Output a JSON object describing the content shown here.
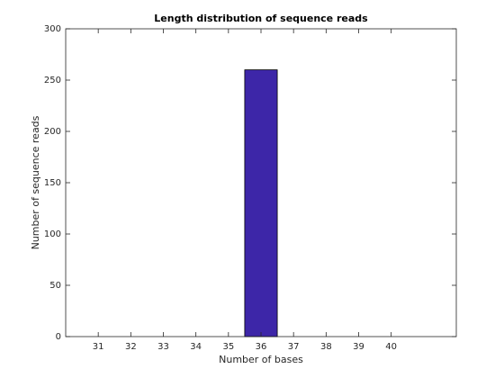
{
  "chart_data": {
    "type": "bar",
    "title": "Length distribution of sequence reads",
    "x_label": "Number of bases",
    "y_label": "Number of sequence reads",
    "x": [
      31,
      32,
      33,
      34,
      35,
      36,
      37,
      38,
      39,
      40
    ],
    "values": [
      0,
      0,
      0,
      0,
      0,
      260,
      0,
      0,
      0,
      0
    ],
    "color": "#3d26a8",
    "xlim": [
      30,
      42
    ],
    "xticks": [
      31,
      32,
      33,
      34,
      35,
      36,
      37,
      38,
      39,
      40
    ],
    "ylim": [
      0,
      300
    ],
    "yticks": [
      0,
      50,
      100,
      150,
      200,
      250,
      300
    ],
    "grid": false
  }
}
